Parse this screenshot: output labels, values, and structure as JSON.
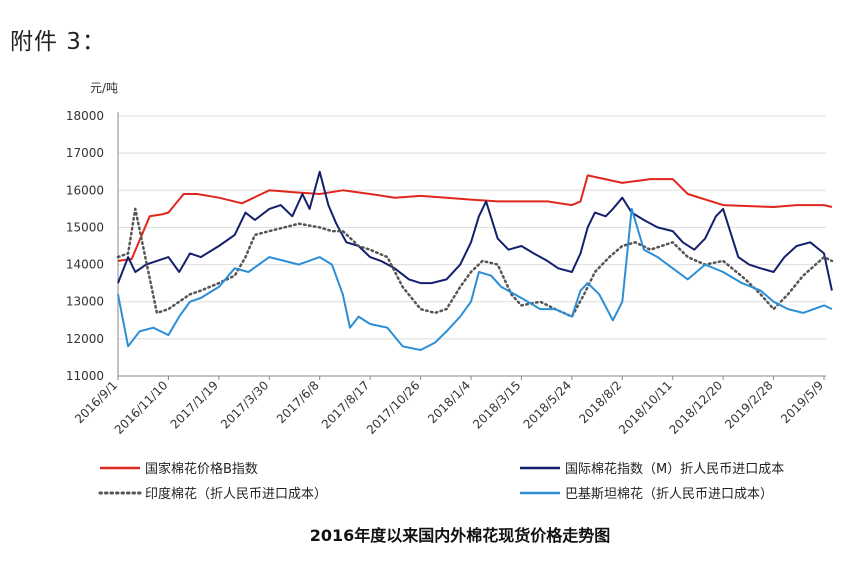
{
  "attachment_label": "附件 3：",
  "chart_data": {
    "type": "line",
    "title": "2016年度以来国内外棉花现货价格走势图",
    "ylabel": "元/吨",
    "xlabel": "",
    "ylim": [
      11000,
      18000
    ],
    "yticks": [
      11000,
      12000,
      13000,
      14000,
      15000,
      16000,
      17000,
      18000
    ],
    "xticks": [
      "2016/9/1",
      "2016/11/10",
      "2017/1/19",
      "2017/3/30",
      "2017/6/8",
      "2017/8/17",
      "2017/10/26",
      "2018/1/4",
      "2018/3/15",
      "2018/5/24",
      "2018/8/2",
      "2018/10/11",
      "2018/12/20",
      "2019/2/28",
      "2019/5/9"
    ],
    "grid": "horizontal",
    "legend_position": "bottom",
    "series": [
      {
        "name": "国家棉花价格B指数",
        "color": "#e0271d",
        "style": "solid",
        "x": [
          "2016/9/1",
          "2016/9/20",
          "2016/10/15",
          "2016/11/1",
          "2016/11/10",
          "2016/12/1",
          "2016/12/20",
          "2017/1/19",
          "2017/2/20",
          "2017/3/30",
          "2017/5/1",
          "2017/6/8",
          "2017/7/10",
          "2017/8/17",
          "2017/9/20",
          "2017/10/26",
          "2017/12/1",
          "2018/1/4",
          "2018/2/10",
          "2018/3/15",
          "2018/4/20",
          "2018/5/24",
          "2018/6/5",
          "2018/6/15",
          "2018/8/2",
          "2018/9/10",
          "2018/10/11",
          "2018/11/1",
          "2018/12/20",
          "2019/2/28",
          "2019/4/1",
          "2019/5/9",
          "2019/5/20"
        ],
        "values": [
          14100,
          14150,
          15300,
          15350,
          15400,
          15900,
          15900,
          15800,
          15650,
          16000,
          15950,
          15900,
          16000,
          15900,
          15800,
          15850,
          15800,
          15750,
          15700,
          15700,
          15700,
          15600,
          15700,
          16400,
          16200,
          16300,
          16300,
          15900,
          15600,
          15550,
          15600,
          15600,
          15550
        ]
      },
      {
        "name": "国际棉花指数（M）折人民币进口成本",
        "color": "#14206b",
        "style": "solid",
        "x": [
          "2016/9/1",
          "2016/9/15",
          "2016/9/25",
          "2016/10/10",
          "2016/10/25",
          "2016/11/10",
          "2016/11/25",
          "2016/12/10",
          "2016/12/25",
          "2017/1/19",
          "2017/2/10",
          "2017/2/25",
          "2017/3/10",
          "2017/3/30",
          "2017/4/15",
          "2017/5/1",
          "2017/5/15",
          "2017/5/25",
          "2017/6/8",
          "2017/6/20",
          "2017/7/1",
          "2017/7/15",
          "2017/8/1",
          "2017/8/17",
          "2017/9/1",
          "2017/9/20",
          "2017/10/10",
          "2017/10/26",
          "2017/11/10",
          "2017/12/1",
          "2017/12/20",
          "2018/1/4",
          "2018/1/15",
          "2018/1/25",
          "2018/2/10",
          "2018/2/25",
          "2018/3/15",
          "2018/4/1",
          "2018/4/20",
          "2018/5/5",
          "2018/5/24",
          "2018/6/5",
          "2018/6/15",
          "2018/6/25",
          "2018/7/10",
          "2018/7/20",
          "2018/8/2",
          "2018/8/15",
          "2018/9/1",
          "2018/9/20",
          "2018/10/11",
          "2018/10/25",
          "2018/11/10",
          "2018/11/25",
          "2018/12/10",
          "2018/12/20",
          "2019/1/10",
          "2019/1/25",
          "2019/2/10",
          "2019/2/28",
          "2019/3/15",
          "2019/4/1",
          "2019/4/20",
          "2019/5/9",
          "2019/5/20"
        ],
        "values": [
          13500,
          14200,
          13800,
          14000,
          14100,
          14200,
          13800,
          14300,
          14200,
          14500,
          14800,
          15400,
          15200,
          15500,
          15600,
          15300,
          15900,
          15500,
          16500,
          15600,
          15100,
          14600,
          14500,
          14200,
          14100,
          13900,
          13600,
          13500,
          13500,
          13600,
          14000,
          14600,
          15300,
          15700,
          14700,
          14400,
          14500,
          14300,
          14100,
          13900,
          13800,
          14300,
          15000,
          15400,
          15300,
          15500,
          15800,
          15400,
          15200,
          15000,
          14900,
          14600,
          14400,
          14700,
          15300,
          15500,
          14200,
          14000,
          13900,
          13800,
          14200,
          14500,
          14600,
          14300,
          13300
        ]
      },
      {
        "name": "印度棉花（折人民币进口成本）",
        "color": "#555555",
        "style": "dotted",
        "x": [
          "2016/9/1",
          "2016/9/15",
          "2016/9/25",
          "2016/10/10",
          "2016/10/25",
          "2016/11/10",
          "2016/11/25",
          "2016/12/10",
          "2016/12/25",
          "2017/1/19",
          "2017/2/10",
          "2017/2/25",
          "2017/3/10",
          "2017/3/30",
          "2017/4/20",
          "2017/5/10",
          "2017/6/8",
          "2017/6/25",
          "2017/7/10",
          "2017/8/1",
          "2017/8/17",
          "2017/9/10",
          "2017/10/1",
          "2017/10/26",
          "2017/11/15",
          "2017/12/1",
          "2017/12/20",
          "2018/1/4",
          "2018/1/20",
          "2018/2/10",
          "2018/3/1",
          "2018/3/15",
          "2018/4/10",
          "2018/5/1",
          "2018/5/24",
          "2018/6/10",
          "2018/6/25",
          "2018/7/15",
          "2018/8/2",
          "2018/8/20",
          "2018/9/10",
          "2018/10/11",
          "2018/11/1",
          "2018/11/25",
          "2018/12/20",
          "2019/1/20",
          "2019/2/10",
          "2019/2/28",
          "2019/3/20",
          "2019/4/10",
          "2019/5/9",
          "2019/5/20"
        ],
        "values": [
          14200,
          14300,
          15500,
          14100,
          12700,
          12800,
          13000,
          13200,
          13300,
          13500,
          13700,
          14200,
          14800,
          14900,
          15000,
          15100,
          15000,
          14900,
          14900,
          14500,
          14400,
          14200,
          13400,
          12800,
          12700,
          12800,
          13400,
          13800,
          14100,
          14000,
          13200,
          12900,
          13000,
          12800,
          12600,
          13200,
          13800,
          14200,
          14500,
          14600,
          14400,
          14600,
          14200,
          14000,
          14100,
          13600,
          13200,
          12800,
          13200,
          13700,
          14200,
          14100
        ]
      },
      {
        "name": "巴基斯坦棉花（折人民币进口成本）",
        "color": "#2c8fd6",
        "style": "solid",
        "x": [
          "2016/9/1",
          "2016/9/15",
          "2016/10/1",
          "2016/10/20",
          "2016/11/10",
          "2016/11/25",
          "2016/12/10",
          "2016/12/25",
          "2017/1/19",
          "2017/2/10",
          "2017/3/1",
          "2017/3/30",
          "2017/4/20",
          "2017/5/10",
          "2017/6/8",
          "2017/6/25",
          "2017/7/10",
          "2017/7/20",
          "2017/8/1",
          "2017/8/17",
          "2017/9/10",
          "2017/10/1",
          "2017/10/26",
          "2017/11/15",
          "2017/12/1",
          "2017/12/20",
          "2018/1/4",
          "2018/1/15",
          "2018/2/1",
          "2018/2/15",
          "2018/3/15",
          "2018/4/10",
          "2018/5/1",
          "2018/5/24",
          "2018/6/5",
          "2018/6/15",
          "2018/7/1",
          "2018/7/20",
          "2018/8/2",
          "2018/8/15",
          "2018/9/1",
          "2018/9/20",
          "2018/10/11",
          "2018/11/1",
          "2018/11/25",
          "2018/12/20",
          "2019/1/15",
          "2019/2/10",
          "2019/2/28",
          "2019/3/20",
          "2019/4/10",
          "2019/5/9",
          "2019/5/20"
        ],
        "values": [
          13200,
          11800,
          12200,
          12300,
          12100,
          12600,
          13000,
          13100,
          13400,
          13900,
          13800,
          14200,
          14100,
          14000,
          14200,
          14000,
          13200,
          12300,
          12600,
          12400,
          12300,
          11800,
          11700,
          11900,
          12200,
          12600,
          13000,
          13800,
          13700,
          13400,
          13100,
          12800,
          12800,
          12600,
          13300,
          13500,
          13200,
          12500,
          13000,
          15500,
          14400,
          14200,
          13900,
          13600,
          14000,
          13800,
          13500,
          13300,
          13000,
          12800,
          12700,
          12900,
          12800
        ]
      }
    ]
  }
}
